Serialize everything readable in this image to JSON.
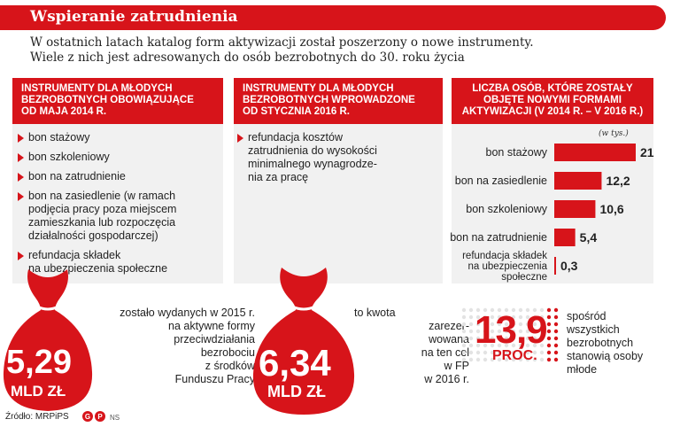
{
  "title": "Wspieranie zatrudnienia",
  "intro": [
    "W ostatnich latach katalog form aktywizacji został poszerzony o nowe instrumenty.",
    "Wiele z nich jest adresowanych do osób bezrobotnych do 30. roku życia"
  ],
  "col1": {
    "header": [
      "INSTRUMENTY DLA MŁODYCH",
      "BEZROBOTNYCH OBOWIĄZUJĄCE",
      "OD MAJA 2014 R."
    ],
    "items": [
      [
        "bon stażowy"
      ],
      [
        "bon szkoleniowy"
      ],
      [
        "bon na zatrudnienie"
      ],
      [
        "bon na zasiedlenie (w ramach",
        "podjęcia pracy poza miejscem",
        "zamieszkania lub rozpoczęcia",
        "działalności gospodarczej)"
      ],
      [
        "refundacja składek",
        "na ubezpieczenia społeczne"
      ]
    ]
  },
  "col2": {
    "header": [
      "INSTRUMENTY DLA MŁODYCH",
      "BEZROBOTNYCH WPROWADZONE",
      "OD STYCZNIA 2016 R."
    ],
    "items": [
      [
        "refundacja kosztów",
        "zatrudnienia do wysokości",
        "minimalnego wynagrodze-",
        "nia za pracę"
      ]
    ]
  },
  "col3": {
    "header": [
      "LICZBA OSÓB, KTÓRE ZOSTAŁY",
      "OBJĘTE NOWYMI FORMAMI",
      "AKTYWIZACJI (V 2014 R. – V 2016 R.)"
    ]
  },
  "chart_data": {
    "type": "bar",
    "orientation": "horizontal",
    "unit": "(w tys.)",
    "categories": [
      [
        "bon stażowy"
      ],
      [
        "bon na zasiedlenie"
      ],
      [
        "bon szkoleniowy"
      ],
      [
        "bon na zatrudnienie"
      ],
      [
        "refundacja składek",
        "na ubezpieczenia",
        "społeczne"
      ]
    ],
    "values": [
      21,
      12.2,
      10.6,
      5.4,
      0.3
    ],
    "value_labels": [
      "21",
      "12,2",
      "10,6",
      "5,4",
      "0,3"
    ],
    "xlim": [
      0,
      21
    ],
    "color": "#d7141a",
    "grid": false
  },
  "money1": {
    "value": "5,29",
    "unit": "MLD ZŁ",
    "text": [
      "zostało wydanych w 2015 r.",
      "na aktywne formy",
      "przeciwdziałania",
      "bezrobociu",
      "z środków",
      "Funduszu Pracy"
    ]
  },
  "money2": {
    "value": "6,34",
    "unit": "MLD ZŁ",
    "text": [
      "to kwota",
      "zarezer-",
      "wowana",
      "na ten cel",
      "w FP",
      "w 2016 r."
    ]
  },
  "percent": {
    "value": "13,9",
    "unit": "PROC.",
    "text": [
      "spośród",
      "wszystkich",
      "bezrobotnych",
      "stanowią osoby",
      "młode"
    ]
  },
  "source": "Źródło: MRPiPS",
  "logo": "GP",
  "logo_suffix": "NS",
  "colors": {
    "accent": "#d7141a",
    "panel": "#f1f1f1",
    "text": "#222222"
  }
}
